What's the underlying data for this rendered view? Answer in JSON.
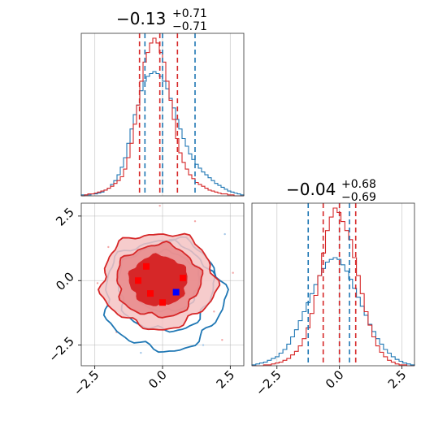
{
  "chart_data": [
    {
      "type": "histogram",
      "title_value": "−0.13",
      "title_sup": "+0.71",
      "title_sub": "−0.71",
      "xlim": [
        -3.0,
        3.0
      ],
      "series": [
        {
          "color": "#1f77b4",
          "values": [
            1,
            1,
            1,
            2,
            2,
            3,
            4,
            6,
            8,
            12,
            16,
            22,
            30,
            40,
            55,
            70,
            85,
            95,
            110,
            120,
            125,
            128,
            130,
            128,
            125,
            120,
            112,
            102,
            92,
            80,
            70,
            60,
            52,
            44,
            38,
            33,
            29,
            25,
            22,
            19,
            16,
            13,
            11,
            9,
            7,
            5,
            4,
            3,
            2,
            1
          ]
        },
        {
          "color": "#d62728",
          "values": [
            0,
            1,
            2,
            2,
            3,
            4,
            5,
            6,
            8,
            10,
            13,
            16,
            20,
            28,
            40,
            55,
            75,
            95,
            120,
            140,
            150,
            160,
            165,
            160,
            150,
            140,
            120,
            100,
            80,
            60,
            45,
            35,
            28,
            22,
            18,
            14,
            12,
            10,
            8,
            6,
            5,
            4,
            3,
            2,
            2,
            1,
            1,
            0,
            0,
            0
          ]
        }
      ],
      "quantiles": [
        {
          "color": "#d62728",
          "values": [
            -0.85,
            -0.1,
            0.55
          ]
        },
        {
          "color": "#1f77b4",
          "values": [
            -0.65,
            0.0,
            1.2
          ]
        }
      ]
    },
    {
      "type": "contour",
      "xlim": [
        -3.0,
        3.0
      ],
      "ylim": [
        -3.3,
        3.0
      ],
      "xticks": [
        "−2.5",
        "0.0",
        "2.5"
      ],
      "yticks": [
        "2.5",
        "0.0",
        "−2.5"
      ],
      "xtick_values": [
        -2.5,
        0.0,
        2.5
      ],
      "ytick_values": [
        2.5,
        0.0,
        -2.5
      ],
      "series": [
        {
          "color": "#1f77b4",
          "levels": [
            {
              "cx": 0.05,
              "cy": -0.55,
              "rx": 2.2,
              "ry": 2.15
            },
            {
              "cx": 0.1,
              "cy": -0.25,
              "rx": 1.75,
              "ry": 1.7
            },
            {
              "cx": 0.15,
              "cy": -0.05,
              "rx": 1.2,
              "ry": 1.15
            }
          ]
        },
        {
          "color": "#d62728",
          "levels": [
            {
              "cx": -0.15,
              "cy": 0.0,
              "rx": 2.1,
              "ry": 1.85
            },
            {
              "cx": -0.15,
              "cy": 0.0,
              "rx": 1.55,
              "ry": 1.4
            },
            {
              "cx": -0.15,
              "cy": 0.0,
              "rx": 1.05,
              "ry": 0.95
            }
          ]
        }
      ],
      "scatter_red": [
        [
          -0.9,
          0.55
        ],
        [
          -0.4,
          0.6
        ],
        [
          -0.6,
          -0.5
        ],
        [
          0.2,
          -0.8
        ],
        [
          -0.2,
          -0.3
        ],
        [
          0.7,
          0.1
        ],
        [
          -0.3,
          -0.2
        ],
        [
          -0.1,
          2.9
        ],
        [
          -2.4,
          -0.1
        ],
        [
          1.9,
          -1.2
        ],
        [
          -2.0,
          1.3
        ],
        [
          2.6,
          0.3
        ],
        [
          1.2,
          2.3
        ],
        [
          -1.7,
          -2.0
        ],
        [
          2.2,
          -2.3
        ]
      ],
      "scatter_blue": [
        [
          0.5,
          -0.45
        ],
        [
          -2.0,
          -1.0
        ],
        [
          1.5,
          -2.5
        ],
        [
          2.3,
          1.8
        ],
        [
          -0.8,
          -2.8
        ]
      ]
    },
    {
      "type": "histogram",
      "title_value": "−0.04",
      "title_sup": "+0.68",
      "title_sub": "−0.69",
      "xlim": [
        -3.5,
        3.0
      ],
      "xticks": [
        "−2.5",
        "0.0",
        "2.5"
      ],
      "xtick_values": [
        -2.5,
        0.0,
        2.5
      ],
      "series": [
        {
          "color": "#1f77b4",
          "values": [
            1,
            2,
            3,
            4,
            6,
            8,
            10,
            14,
            18,
            24,
            32,
            40,
            50,
            60,
            70,
            80,
            90,
            100,
            108,
            115,
            118,
            120,
            118,
            112,
            105,
            96,
            86,
            76,
            66,
            56,
            46,
            38,
            30,
            24,
            18,
            14,
            10,
            7,
            5,
            3,
            2,
            1
          ]
        },
        {
          "color": "#d62728",
          "values": [
            0,
            0,
            0,
            1,
            1,
            2,
            3,
            4,
            6,
            8,
            12,
            16,
            22,
            30,
            42,
            58,
            78,
            100,
            125,
            150,
            165,
            175,
            170,
            160,
            150,
            140,
            120,
            100,
            80,
            60,
            45,
            32,
            22,
            15,
            10,
            6,
            4,
            2,
            1,
            1,
            0,
            0
          ]
        }
      ],
      "quantiles": [
        {
          "color": "#1f77b4",
          "values": [
            -1.25,
            0.0,
            0.4
          ]
        },
        {
          "color": "#d62728",
          "values": [
            -0.65,
            0.0,
            0.65
          ]
        }
      ]
    }
  ]
}
